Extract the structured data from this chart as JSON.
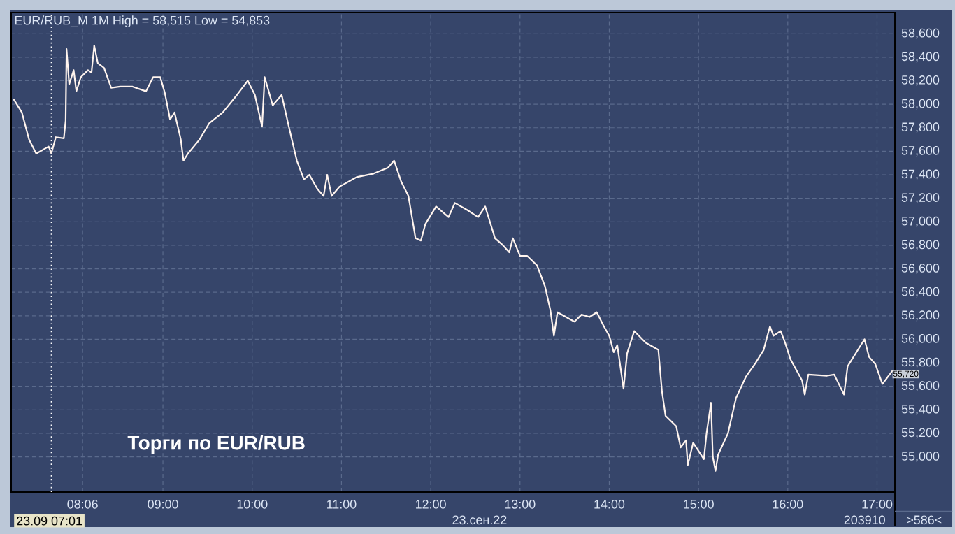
{
  "chart_data": {
    "type": "line",
    "title": "EUR/RUB_M 1M High = 58,515 Low = 54,853",
    "x": [
      7.33,
      7.42,
      7.5,
      7.58,
      7.72,
      7.75,
      7.8,
      7.89,
      7.91,
      7.92,
      7.95,
      8.0,
      8.03,
      8.08,
      8.16,
      8.2,
      8.23,
      8.27,
      8.34,
      8.42,
      8.52,
      8.66,
      8.81,
      8.89,
      8.97,
      9.02,
      9.08,
      9.13,
      9.2,
      9.23,
      9.28,
      9.41,
      9.52,
      9.67,
      9.83,
      9.95,
      10.03,
      10.11,
      10.14,
      10.23,
      10.33,
      10.41,
      10.5,
      10.58,
      10.64,
      10.73,
      10.8,
      10.84,
      10.89,
      10.98,
      11.17,
      11.36,
      11.52,
      11.59,
      11.67,
      11.75,
      11.83,
      11.89,
      11.94,
      12.06,
      12.2,
      12.27,
      12.41,
      12.53,
      12.61,
      12.72,
      12.81,
      12.88,
      12.92,
      13.0,
      13.08,
      13.19,
      13.28,
      13.34,
      13.38,
      13.42,
      13.61,
      13.69,
      13.78,
      13.86,
      13.94,
      14.0,
      14.05,
      14.09,
      14.16,
      14.2,
      14.28,
      14.41,
      14.55,
      14.59,
      14.63,
      14.75,
      14.8,
      14.86,
      14.88,
      14.94,
      15.06,
      15.09,
      15.14,
      15.16,
      15.19,
      15.22,
      15.33,
      15.42,
      15.53,
      15.64,
      15.73,
      15.8,
      15.84,
      15.92,
      15.97,
      16.03,
      16.16,
      16.19,
      16.23,
      16.44,
      16.52,
      16.63,
      16.67,
      16.81,
      16.86,
      16.91,
      16.98,
      17.06,
      17.17
    ],
    "series": [
      {
        "color": "#fff4ee",
        "values": [
          58040,
          57930,
          57700,
          57580,
          57640,
          57580,
          57720,
          57710,
          57860,
          58470,
          58170,
          58290,
          58110,
          58230,
          58290,
          58270,
          58500,
          58350,
          58310,
          58140,
          58150,
          58150,
          58110,
          58230,
          58230,
          58100,
          57870,
          57930,
          57700,
          57520,
          57580,
          57700,
          57840,
          57930,
          58080,
          58200,
          58080,
          57810,
          58230,
          57990,
          58080,
          57810,
          57520,
          57360,
          57400,
          57280,
          57220,
          57400,
          57220,
          57300,
          57380,
          57410,
          57460,
          57520,
          57340,
          57220,
          56860,
          56840,
          56980,
          57130,
          57040,
          57160,
          57100,
          57040,
          57130,
          56860,
          56800,
          56740,
          56860,
          56710,
          56710,
          56630,
          56450,
          56250,
          56030,
          56230,
          56150,
          56210,
          56190,
          56230,
          56110,
          56030,
          55890,
          55950,
          55580,
          55880,
          56070,
          55970,
          55910,
          55560,
          55350,
          55260,
          55080,
          55140,
          54930,
          55120,
          54980,
          55200,
          55460,
          55000,
          54880,
          55020,
          55200,
          55500,
          55680,
          55800,
          55910,
          56110,
          56030,
          56070,
          55970,
          55830,
          55650,
          55530,
          55700,
          55690,
          55700,
          55530,
          55770,
          55940,
          56000,
          55850,
          55790,
          55620,
          55730
        ]
      }
    ],
    "xlim": [
      7.3,
      17.2
    ],
    "ylim": [
      54700,
      58780
    ],
    "xticks": [
      {
        "value": 8.1,
        "label": "08:06"
      },
      {
        "value": 9,
        "label": "09:00"
      },
      {
        "value": 10,
        "label": "10:00"
      },
      {
        "value": 11,
        "label": "11:00"
      },
      {
        "value": 12,
        "label": "12:00"
      },
      {
        "value": 13,
        "label": "13:00"
      },
      {
        "value": 14,
        "label": "14:00"
      },
      {
        "value": 15,
        "label": "15:00"
      },
      {
        "value": 16,
        "label": "16:00"
      },
      {
        "value": 17,
        "label": "17:00"
      }
    ],
    "yticks": [
      {
        "value": 55000,
        "label": "55,000"
      },
      {
        "value": 55200,
        "label": "55,200"
      },
      {
        "value": 55400,
        "label": "55,400"
      },
      {
        "value": 55600,
        "label": "55,600"
      },
      {
        "value": 55800,
        "label": "55,800"
      },
      {
        "value": 56000,
        "label": "56,000"
      },
      {
        "value": 56200,
        "label": "56,200"
      },
      {
        "value": 56400,
        "label": "56,400"
      },
      {
        "value": 56600,
        "label": "56,600"
      },
      {
        "value": 56800,
        "label": "56,800"
      },
      {
        "value": 57000,
        "label": "57,000"
      },
      {
        "value": 57200,
        "label": "57,200"
      },
      {
        "value": 57400,
        "label": "57,400"
      },
      {
        "value": 57600,
        "label": "57,600"
      },
      {
        "value": 57800,
        "label": "57,800"
      },
      {
        "value": 58000,
        "label": "58,000"
      },
      {
        "value": 58200,
        "label": "58,200"
      },
      {
        "value": 58400,
        "label": "58,400"
      },
      {
        "value": 58600,
        "label": "58,600"
      }
    ],
    "grid": true,
    "marker": "none",
    "line_style": "solid",
    "ref_lines": [
      {
        "axis": "x",
        "value": 7.75,
        "color": "#ffffff",
        "line_style": "dotted"
      }
    ],
    "annotations": [
      "Торги по EUR/RUB",
      "23.09 07:01",
      "23.сен.22",
      "203910",
      ">586<",
      {
        "text": "55,720",
        "x": 17.17,
        "y": 55720
      }
    ]
  }
}
